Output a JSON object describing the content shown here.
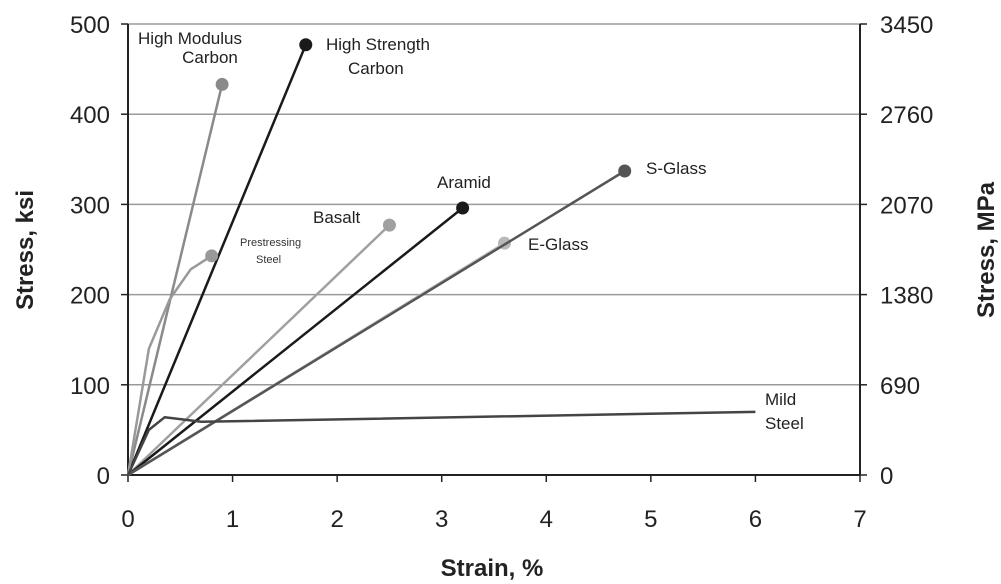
{
  "chart_data": {
    "type": "line",
    "xlabel": "Strain, %",
    "ylabel": "Stress, ksi",
    "y2label": "Stress, MPa",
    "xlim": [
      0,
      7
    ],
    "ylim": [
      0,
      500
    ],
    "xticks": [
      "0",
      "1",
      "2",
      "3",
      "4",
      "5",
      "6",
      "7"
    ],
    "yticks": [
      "0",
      "100",
      "200",
      "300",
      "400",
      "500"
    ],
    "y2ticks": [
      "0",
      "690",
      "1380",
      "2070",
      "2760",
      "3450"
    ],
    "grid": "horizontal",
    "series": [
      {
        "name": "High Modulus Carbon",
        "label_lines": [
          "High Modulus",
          "Carbon"
        ],
        "color": "#8a8a8a",
        "marker": true,
        "points": [
          [
            0,
            0
          ],
          [
            0.9,
            433
          ]
        ]
      },
      {
        "name": "High Strength Carbon",
        "label_lines": [
          "High Strength",
          "Carbon"
        ],
        "color": "#1a1a1a",
        "marker": true,
        "points": [
          [
            0,
            0
          ],
          [
            1.7,
            477
          ]
        ]
      },
      {
        "name": "Prestressing Steel",
        "label_lines": [
          "Prestressing",
          "Steel"
        ],
        "color": "#999999",
        "marker": true,
        "points": [
          [
            0,
            0
          ],
          [
            0.2,
            140
          ],
          [
            0.4,
            195
          ],
          [
            0.6,
            228
          ],
          [
            0.8,
            243
          ]
        ]
      },
      {
        "name": "Basalt",
        "label_lines": [
          "Basalt"
        ],
        "color": "#a0a0a0",
        "marker": true,
        "points": [
          [
            0,
            0
          ],
          [
            2.5,
            277
          ]
        ]
      },
      {
        "name": "Aramid",
        "label_lines": [
          "Aramid"
        ],
        "color": "#1a1a1a",
        "marker": true,
        "points": [
          [
            0,
            0
          ],
          [
            3.2,
            296
          ]
        ]
      },
      {
        "name": "E-Glass",
        "label_lines": [
          "E-Glass"
        ],
        "color": "#b8b8b8",
        "marker": true,
        "points": [
          [
            0,
            0
          ],
          [
            3.6,
            257
          ]
        ]
      },
      {
        "name": "S-Glass",
        "label_lines": [
          "S-Glass"
        ],
        "color": "#555555",
        "marker": true,
        "points": [
          [
            0,
            0
          ],
          [
            4.75,
            337
          ]
        ]
      },
      {
        "name": "Mild Steel",
        "label_lines": [
          "Mild",
          "Steel"
        ],
        "color": "#444444",
        "marker": false,
        "points": [
          [
            0,
            0
          ],
          [
            0.2,
            50
          ],
          [
            0.35,
            64
          ],
          [
            0.5,
            62
          ],
          [
            0.7,
            59
          ],
          [
            6,
            70
          ]
        ]
      }
    ]
  }
}
